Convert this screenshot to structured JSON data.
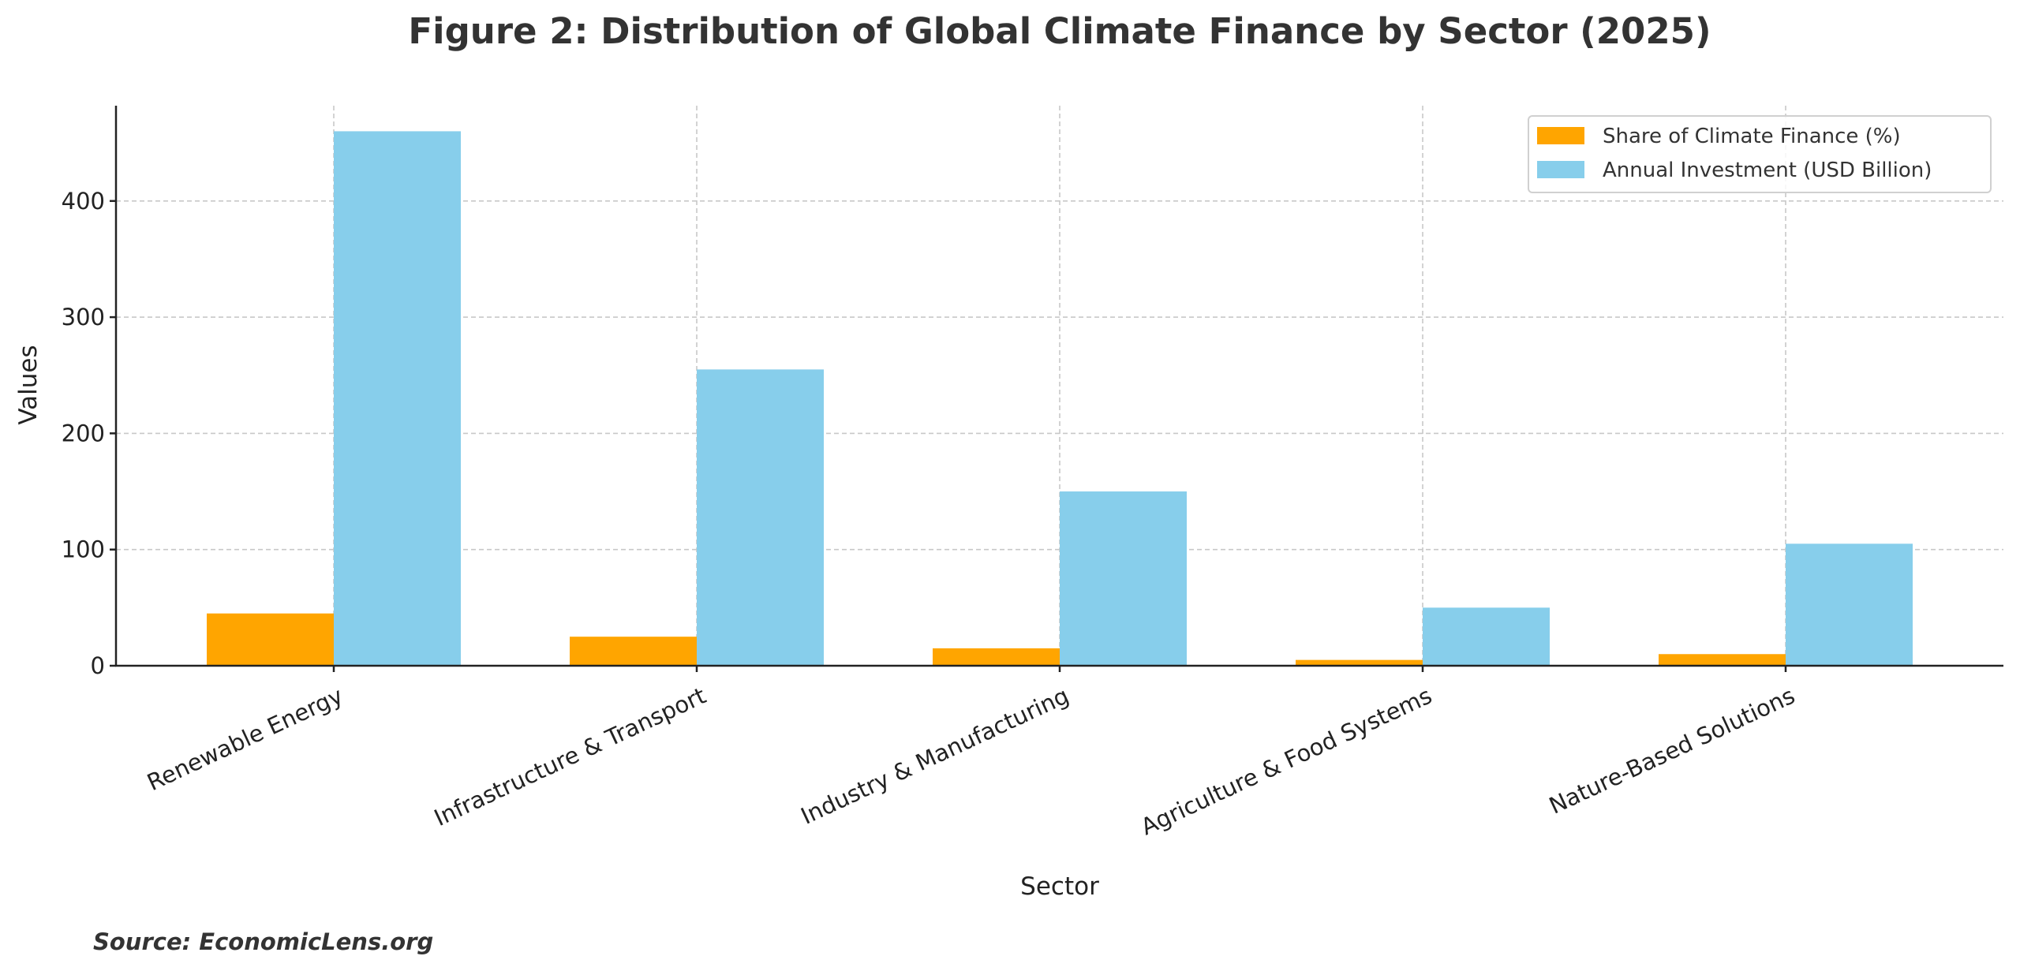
{
  "chart_data": {
    "type": "bar",
    "title": "Figure 2: Distribution of Global Climate Finance by Sector (2025)",
    "xlabel": "Sector",
    "ylabel": "Values",
    "categories": [
      "Renewable Energy",
      "Infrastructure & Transport",
      "Industry & Manufacturing",
      "Agriculture & Food Systems",
      "Nature-Based Solutions"
    ],
    "series": [
      {
        "name": "Share of Climate Finance (%)",
        "color": "#FFA500",
        "values": [
          45,
          25,
          15,
          5,
          10
        ]
      },
      {
        "name": "Annual Investment (USD Billion)",
        "color": "#87CEEB",
        "values": [
          460,
          255,
          150,
          50,
          105
        ]
      }
    ],
    "ylim": [
      0,
      482
    ],
    "yticks": [
      "0",
      "100",
      "200",
      "300",
      "400"
    ],
    "grid": true,
    "legend_position": "top-right",
    "source": "Source: EconomicLens.org"
  }
}
